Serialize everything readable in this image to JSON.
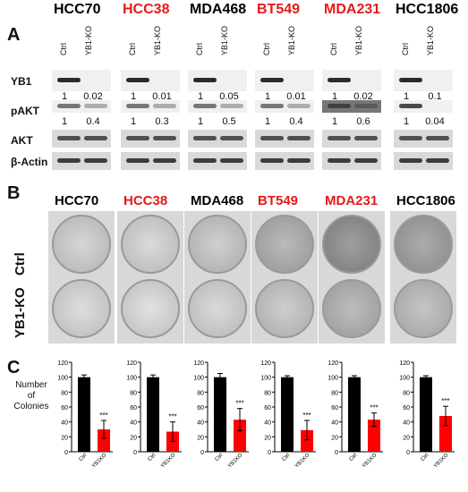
{
  "panels": {
    "a": "A",
    "b": "B",
    "c": "C"
  },
  "cell_lines": [
    {
      "name": "HCC70",
      "color": "#000000"
    },
    {
      "name": "HCC38",
      "color": "#e31a1c"
    },
    {
      "name": "MDA468",
      "color": "#000000"
    },
    {
      "name": "BT549",
      "color": "#e31a1c"
    },
    {
      "name": "MDA231",
      "color": "#e31a1c"
    },
    {
      "name": "HCC1806",
      "color": "#000000"
    }
  ],
  "western": {
    "columns": [
      "Ctrl",
      "YB1-KO"
    ],
    "rows": [
      "YB1",
      "pAKT",
      "AKT",
      "β-Actin"
    ],
    "yb1_ratios": [
      [
        "1",
        "0.02"
      ],
      [
        "1",
        "0.01"
      ],
      [
        "1",
        "0.05"
      ],
      [
        "1",
        "0.01"
      ],
      [
        "1",
        "0.02"
      ],
      [
        "1",
        "0.1"
      ]
    ],
    "pakt_ratios": [
      [
        "1",
        "0.4"
      ],
      [
        "1",
        "0.3"
      ],
      [
        "1",
        "0.5"
      ],
      [
        "1",
        "0.4"
      ],
      [
        "1",
        "0.6"
      ],
      [
        "1",
        "0.04"
      ]
    ]
  },
  "colony_rows": [
    "Ctrl",
    "YB1-KO"
  ],
  "chart_data": {
    "type": "bar",
    "ylabel": "Number of Colonies",
    "ylim": [
      0,
      120
    ],
    "yticks": [
      0,
      20,
      40,
      60,
      80,
      100,
      120
    ],
    "categories": [
      "Ctrl",
      "YB1KO"
    ],
    "significance": "***",
    "colors": {
      "ctrl": "#000000",
      "ko": "#ff0000"
    },
    "panels": [
      {
        "cell_line": "HCC70",
        "values": [
          100,
          30
        ],
        "errors": [
          3,
          12
        ]
      },
      {
        "cell_line": "HCC38",
        "values": [
          100,
          27
        ],
        "errors": [
          3,
          13
        ]
      },
      {
        "cell_line": "MDA468",
        "values": [
          100,
          43
        ],
        "errors": [
          5,
          15
        ]
      },
      {
        "cell_line": "BT549",
        "values": [
          100,
          29
        ],
        "errors": [
          2,
          13
        ]
      },
      {
        "cell_line": "MDA231",
        "values": [
          100,
          43
        ],
        "errors": [
          2,
          9
        ]
      },
      {
        "cell_line": "HCC1806",
        "values": [
          100,
          48
        ],
        "errors": [
          2,
          13
        ]
      }
    ]
  }
}
